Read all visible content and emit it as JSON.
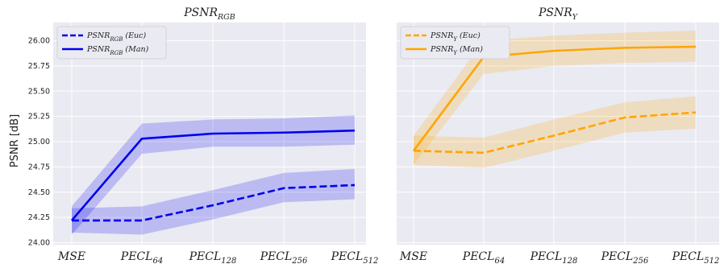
{
  "chart_data": {
    "type": "line",
    "ylabel": "PSNR [dB]",
    "ylim": [
      23.98,
      26.18
    ],
    "yticks": [
      "24.00",
      "24.25",
      "24.50",
      "24.75",
      "25.00",
      "25.25",
      "25.50",
      "25.75",
      "26.00"
    ],
    "grid": true,
    "legend_position": "top-left",
    "categories": [
      {
        "base": "MSE",
        "sub": ""
      },
      {
        "base": "PECL",
        "sub": "64"
      },
      {
        "base": "PECL",
        "sub": "128"
      },
      {
        "base": "PECL",
        "sub": "256"
      },
      {
        "base": "PECL",
        "sub": "512"
      }
    ],
    "panels": [
      {
        "title_base": "PSNR",
        "title_sub": "RGB",
        "color": "#0000ee",
        "series": [
          {
            "name_base": "PSNR",
            "name_sub": "RGB",
            "name_suffix": " (Euc)",
            "style": "dashed",
            "values": [
              24.22,
              24.22,
              24.37,
              24.54,
              24.57
            ],
            "band": [
              [
                24.1,
                24.34
              ],
              [
                24.08,
                24.36
              ],
              [
                24.23,
                24.52
              ],
              [
                24.4,
                24.69
              ],
              [
                24.43,
                24.73
              ]
            ]
          },
          {
            "name_base": "PSNR",
            "name_sub": "RGB",
            "name_suffix": " (Man)",
            "style": "solid",
            "values": [
              24.22,
              25.03,
              25.08,
              25.09,
              25.11
            ],
            "band": [
              [
                24.08,
                24.36
              ],
              [
                24.88,
                25.18
              ],
              [
                24.95,
                25.22
              ],
              [
                24.95,
                25.23
              ],
              [
                24.97,
                25.26
              ]
            ]
          }
        ]
      },
      {
        "title_base": "PSNR",
        "title_sub": "Y",
        "color": "#ffa500",
        "series": [
          {
            "name_base": "PSNR",
            "name_sub": "Y",
            "name_suffix": " (Euc)",
            "style": "dashed",
            "values": [
              24.91,
              24.89,
              25.06,
              25.24,
              25.29
            ],
            "band": [
              [
                24.77,
                25.06
              ],
              [
                24.74,
                25.04
              ],
              [
                24.91,
                25.22
              ],
              [
                25.09,
                25.39
              ],
              [
                25.13,
                25.45
              ]
            ]
          },
          {
            "name_base": "PSNR",
            "name_sub": "Y",
            "name_suffix": " (Man)",
            "style": "solid",
            "values": [
              24.91,
              25.84,
              25.9,
              25.93,
              25.94
            ],
            "band": [
              [
                24.77,
                25.06
              ],
              [
                25.67,
                26.0
              ],
              [
                25.75,
                26.05
              ],
              [
                25.78,
                26.08
              ],
              [
                25.79,
                26.1
              ]
            ]
          }
        ]
      }
    ]
  }
}
